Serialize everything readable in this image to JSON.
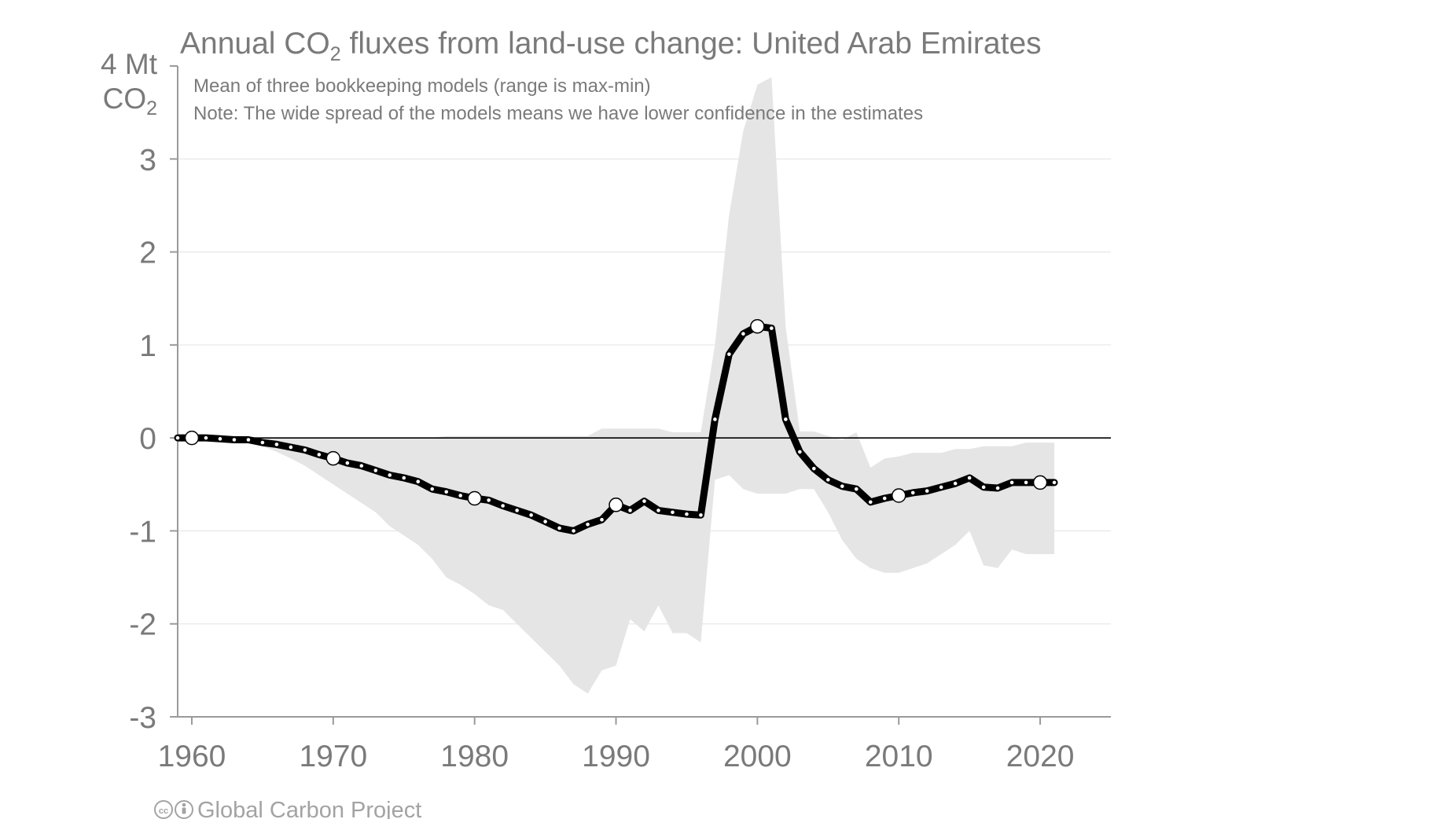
{
  "chart_data": {
    "type": "line",
    "title": {
      "prefix": "Annual CO",
      "subscript": "2",
      "suffix": " fluxes from land-use change: United Arab Emirates"
    },
    "notes": [
      "Mean of three bookkeeping models (range is max-min)",
      "Note: The wide spread of the models means we have lower confidence in the estimates"
    ],
    "y_unit": {
      "line1": "4 Mt",
      "line2": "CO",
      "line2_subscript": "2"
    },
    "ylim": [
      -3,
      4
    ],
    "xlim": [
      1959,
      2025
    ],
    "yticks": [
      "3",
      "2",
      "1",
      "0",
      "-1",
      "-2",
      "-3"
    ],
    "xticks": [
      "1960",
      "1970",
      "1980",
      "1990",
      "2000",
      "2010",
      "2020"
    ],
    "grid": true,
    "zero_line": true,
    "credit": "Global Carbon Project",
    "credit_icons": [
      "cc-icon",
      "attribution-icon"
    ],
    "colors": {
      "line": "#000000",
      "range": "#e5e5e5",
      "text": "#7a7a7a",
      "grid": "#e8e8e8"
    },
    "highlighted_years": [
      1960,
      1970,
      1980,
      1990,
      2000,
      2010,
      2020
    ],
    "series": [
      {
        "role": "mean",
        "x": [
          1959,
          1960,
          1961,
          1962,
          1963,
          1964,
          1965,
          1966,
          1967,
          1968,
          1969,
          1970,
          1971,
          1972,
          1973,
          1974,
          1975,
          1976,
          1977,
          1978,
          1979,
          1980,
          1981,
          1982,
          1983,
          1984,
          1985,
          1986,
          1987,
          1988,
          1989,
          1990,
          1991,
          1992,
          1993,
          1994,
          1995,
          1996,
          1997,
          1998,
          1999,
          2000,
          2001,
          2002,
          2003,
          2004,
          2005,
          2006,
          2007,
          2008,
          2009,
          2010,
          2011,
          2012,
          2013,
          2014,
          2015,
          2016,
          2017,
          2018,
          2019,
          2020,
          2021
        ],
        "y": [
          0.0,
          0.0,
          0.0,
          -0.01,
          -0.02,
          -0.02,
          -0.05,
          -0.07,
          -0.1,
          -0.13,
          -0.18,
          -0.22,
          -0.27,
          -0.3,
          -0.35,
          -0.4,
          -0.43,
          -0.47,
          -0.55,
          -0.58,
          -0.62,
          -0.65,
          -0.67,
          -0.73,
          -0.78,
          -0.83,
          -0.9,
          -0.97,
          -1.0,
          -0.93,
          -0.88,
          -0.72,
          -0.78,
          -0.68,
          -0.78,
          -0.8,
          -0.82,
          -0.83,
          0.2,
          0.9,
          1.12,
          1.2,
          1.18,
          0.2,
          -0.15,
          -0.33,
          -0.45,
          -0.52,
          -0.55,
          -0.69,
          -0.65,
          -0.62,
          -0.59,
          -0.57,
          -0.53,
          -0.49,
          -0.43,
          -0.53,
          -0.54,
          -0.48,
          -0.48,
          -0.48,
          -0.48
        ]
      },
      {
        "role": "range",
        "x": [
          1959,
          1960,
          1961,
          1962,
          1963,
          1964,
          1965,
          1966,
          1967,
          1968,
          1969,
          1970,
          1971,
          1972,
          1973,
          1974,
          1975,
          1976,
          1977,
          1978,
          1979,
          1980,
          1981,
          1982,
          1983,
          1984,
          1985,
          1986,
          1987,
          1988,
          1989,
          1990,
          1991,
          1992,
          1993,
          1994,
          1995,
          1996,
          1997,
          1998,
          1999,
          2000,
          2001,
          2002,
          2003,
          2004,
          2005,
          2006,
          2007,
          2008,
          2009,
          2010,
          2011,
          2012,
          2013,
          2014,
          2015,
          2016,
          2017,
          2018,
          2019,
          2020,
          2021
        ],
        "max": [
          0.0,
          0.0,
          0.0,
          0.0,
          0.0,
          0.0,
          0.0,
          0.0,
          0.0,
          0.0,
          0.0,
          0.0,
          0.0,
          0.0,
          0.0,
          0.0,
          0.0,
          0.0,
          0.0,
          0.02,
          0.02,
          0.02,
          0.02,
          0.02,
          0.02,
          0.02,
          0.02,
          0.02,
          0.02,
          0.02,
          0.1,
          0.1,
          0.1,
          0.1,
          0.1,
          0.06,
          0.06,
          0.06,
          1.0,
          2.4,
          3.3,
          3.8,
          3.88,
          1.2,
          0.07,
          0.07,
          0.02,
          -0.02,
          0.06,
          -0.32,
          -0.22,
          -0.2,
          -0.16,
          -0.16,
          -0.16,
          -0.12,
          -0.12,
          -0.09,
          -0.09,
          -0.09,
          -0.05,
          -0.05,
          -0.05
        ],
        "min": [
          0.0,
          0.0,
          -0.01,
          -0.01,
          -0.02,
          -0.03,
          -0.09,
          -0.15,
          -0.22,
          -0.3,
          -0.4,
          -0.5,
          -0.6,
          -0.7,
          -0.8,
          -0.95,
          -1.05,
          -1.15,
          -1.3,
          -1.5,
          -1.58,
          -1.68,
          -1.8,
          -1.85,
          -2.0,
          -2.15,
          -2.3,
          -2.45,
          -2.65,
          -2.75,
          -2.5,
          -2.45,
          -1.95,
          -2.08,
          -1.8,
          -2.1,
          -2.1,
          -2.2,
          -0.45,
          -0.4,
          -0.55,
          -0.6,
          -0.6,
          -0.6,
          -0.55,
          -0.55,
          -0.8,
          -1.1,
          -1.3,
          -1.4,
          -1.45,
          -1.45,
          -1.4,
          -1.35,
          -1.25,
          -1.15,
          -1.0,
          -1.37,
          -1.4,
          -1.2,
          -1.25,
          -1.25,
          -1.25
        ]
      }
    ]
  }
}
